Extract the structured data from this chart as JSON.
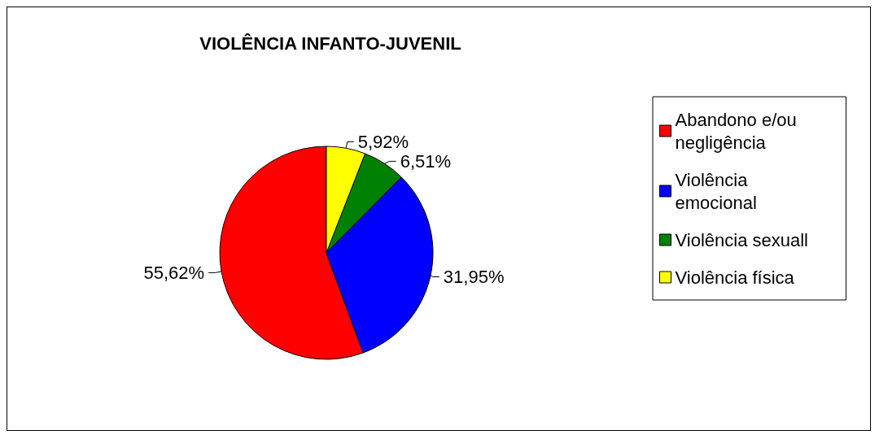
{
  "chart_data": {
    "type": "pie",
    "title": "VIOLÊNCIA INFANTO-JUVENIL",
    "categories": [
      "Abandono e/ou negligência",
      "Violência emocional",
      "Violência sexuall",
      "Violência física"
    ],
    "values": [
      55.62,
      31.95,
      6.51,
      5.92
    ],
    "colors": [
      "#ff0000",
      "#0000ff",
      "#008000",
      "#ffff00"
    ],
    "value_labels": [
      "55,62%",
      "31,95%",
      "6,51%",
      "5,92%"
    ],
    "legend": "right"
  }
}
